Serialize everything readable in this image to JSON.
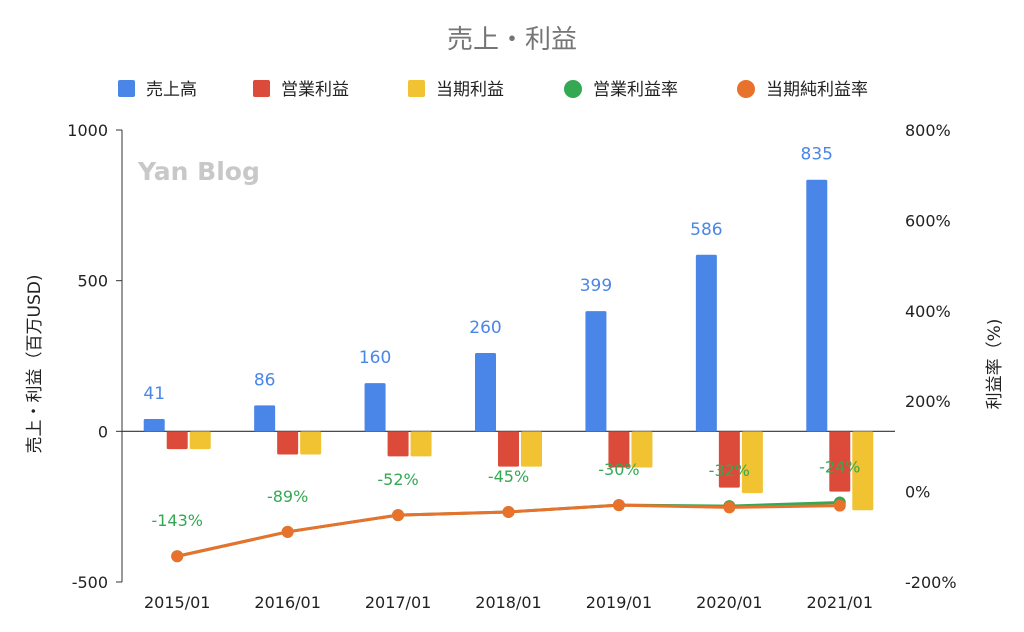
{
  "watermark": "Yan Blog",
  "chart_data": {
    "type": "bar",
    "title": "売上・利益",
    "categories": [
      "2015/01",
      "2016/01",
      "2017/01",
      "2018/01",
      "2019/01",
      "2020/01",
      "2021/01"
    ],
    "ylabel": "売上・利益（百万USD)",
    "y2label": "利益率（%)",
    "ylim": [
      -500,
      1000
    ],
    "y2lim": [
      -200,
      800
    ],
    "yticks": [
      "-500",
      "0",
      "500",
      "1000"
    ],
    "y2ticks": [
      "-200%",
      "0%",
      "200%",
      "400%",
      "600%",
      "800%"
    ],
    "legend_position": "top",
    "grid": false,
    "series": [
      {
        "name": "売上高",
        "kind": "bar",
        "color": "#4a86e8",
        "values": [
          41,
          86,
          160,
          260,
          399,
          586,
          835
        ],
        "labels": [
          "41",
          "86",
          "160",
          "260",
          "399",
          "586",
          "835"
        ]
      },
      {
        "name": "営業利益",
        "kind": "bar",
        "color": "#dc4b3a",
        "values": [
          -59,
          -77,
          -83,
          -117,
          -120,
          -187,
          -200
        ]
      },
      {
        "name": "当期利益",
        "kind": "bar",
        "color": "#f1c232",
        "values": [
          -59,
          -77,
          -83,
          -117,
          -120,
          -205,
          -262
        ]
      },
      {
        "name": "営業利益率",
        "kind": "line",
        "axis": "right",
        "color": "#34a853",
        "values": [
          -143,
          -89,
          -52,
          -45,
          -30,
          -32,
          -24
        ],
        "labels": [
          "-143%",
          "-89%",
          "-52%",
          "-45%",
          "-30%",
          "-32%",
          "-24%"
        ]
      },
      {
        "name": "当期純利益率",
        "kind": "line",
        "axis": "right",
        "color": "#e8712b",
        "values": [
          -143,
          -89,
          -52,
          -45,
          -30,
          -35,
          -31
        ]
      }
    ]
  }
}
